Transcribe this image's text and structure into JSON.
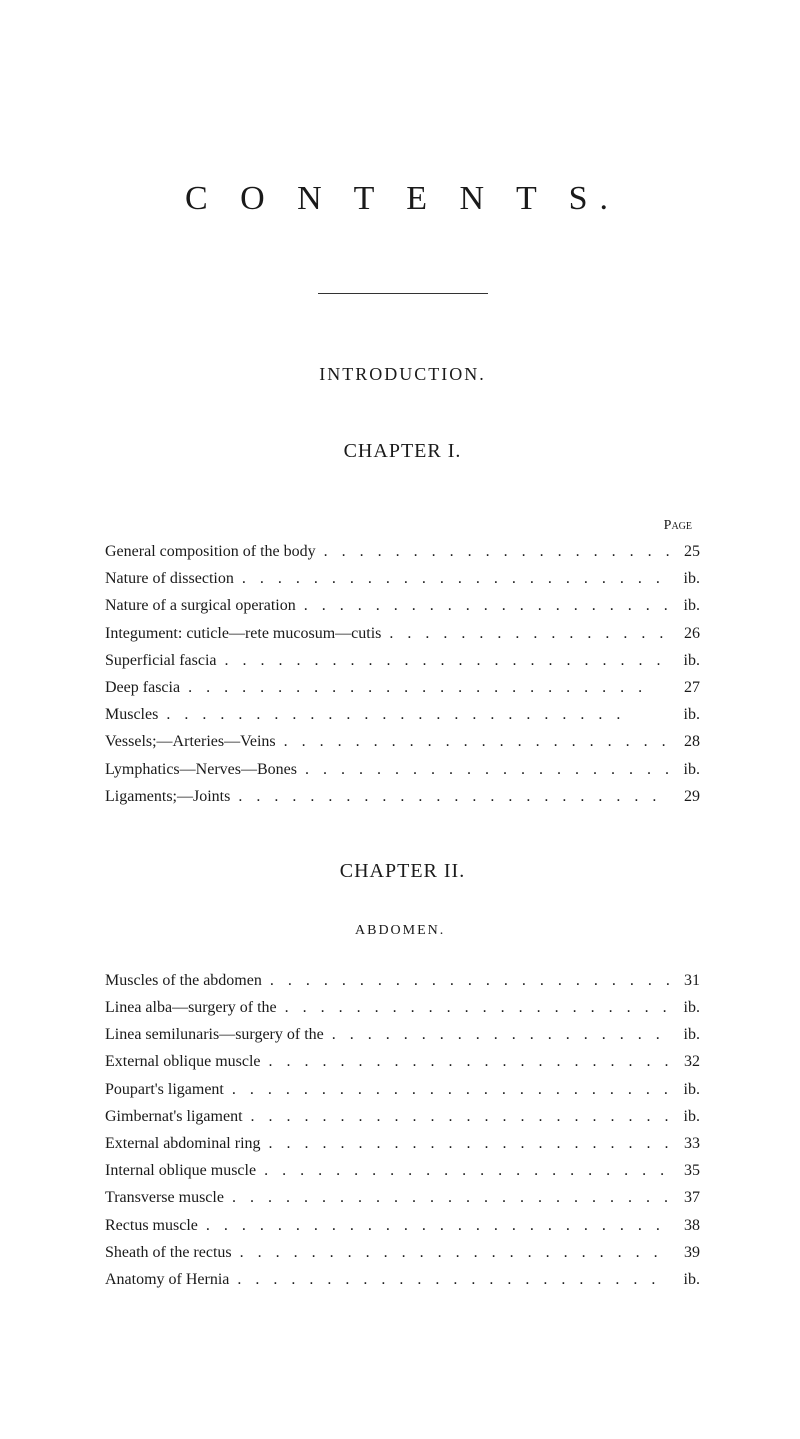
{
  "mainTitle": "C O N T E N T S.",
  "introTitle": "INTRODUCTION.",
  "chapter1": {
    "title": "CHAPTER I.",
    "pageHeader": "Page",
    "entries": [
      {
        "label": "General composition of the body",
        "page": "25"
      },
      {
        "label": "Nature of dissection",
        "page": "ib."
      },
      {
        "label": "Nature of a surgical operation",
        "page": "ib."
      },
      {
        "label": "Integument: cuticle—rete mucosum—cutis",
        "page": "26"
      },
      {
        "label": "Superficial fascia",
        "page": "ib."
      },
      {
        "label": "Deep fascia",
        "page": "27"
      },
      {
        "label": "Muscles",
        "page": "ib."
      },
      {
        "label": "Vessels;—Arteries—Veins",
        "page": "28"
      },
      {
        "label": "Lymphatics—Nerves—Bones",
        "page": "ib."
      },
      {
        "label": "Ligaments;—Joints",
        "page": "29"
      }
    ]
  },
  "chapter2": {
    "title": "CHAPTER II.",
    "subtitle": "ABDOMEN.",
    "entries": [
      {
        "label": "Muscles of the abdomen",
        "page": "31"
      },
      {
        "label": "Linea alba—surgery of the",
        "page": "ib."
      },
      {
        "label": "Linea semilunaris—surgery of the",
        "page": "ib."
      },
      {
        "label": "External oblique muscle",
        "page": "32"
      },
      {
        "label": "Poupart's ligament",
        "page": "ib."
      },
      {
        "label": "Gimbernat's ligament",
        "page": "ib."
      },
      {
        "label": "External abdominal ring",
        "page": "33"
      },
      {
        "label": "Internal oblique muscle",
        "page": "35"
      },
      {
        "label": "Transverse muscle",
        "page": "37"
      },
      {
        "label": "Rectus muscle",
        "page": "38"
      },
      {
        "label": "Sheath of the rectus",
        "page": "39"
      },
      {
        "label": "Anatomy of Hernia",
        "page": "ib."
      }
    ]
  },
  "dotsFill": ".........................."
}
